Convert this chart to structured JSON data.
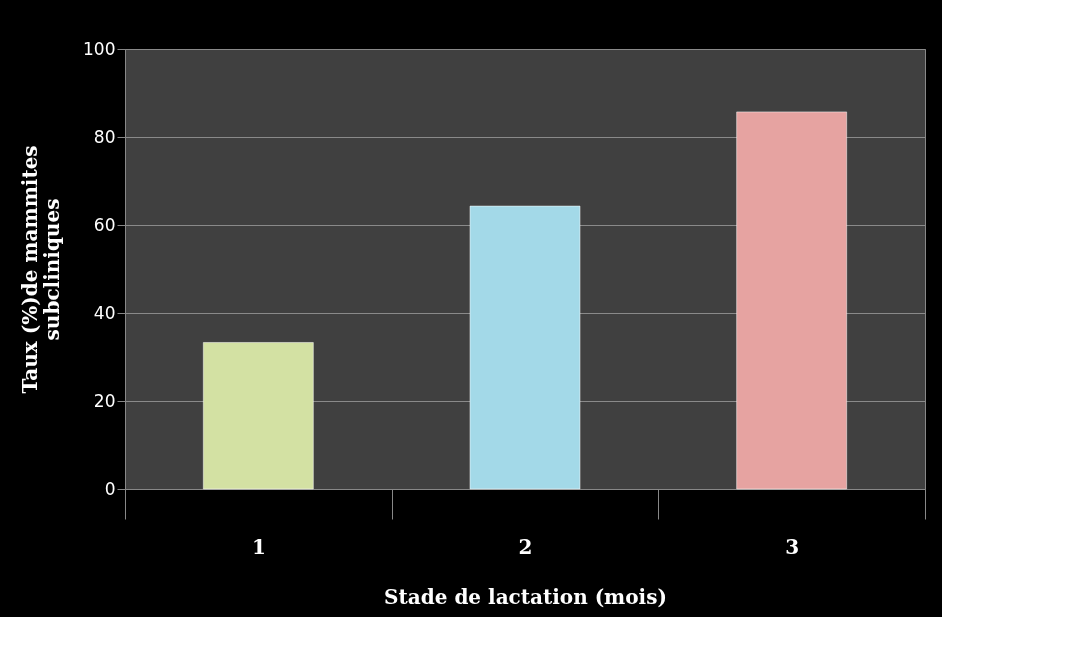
{
  "chart_data": {
    "type": "bar",
    "xlabel": "Stade de lactation (mois)",
    "ylabel": "Taux (%)de mammites\nsubcliniques",
    "categories": [
      "1",
      "2",
      "3"
    ],
    "values": [
      33.3,
      64.3,
      85.7
    ],
    "colors": [
      "#d3e1a3",
      "#a3d9e8",
      "#e6a3a1"
    ],
    "ylim": [
      0,
      100
    ],
    "yticks": [
      0,
      20,
      40,
      60,
      80,
      100
    ],
    "grid": "y"
  }
}
